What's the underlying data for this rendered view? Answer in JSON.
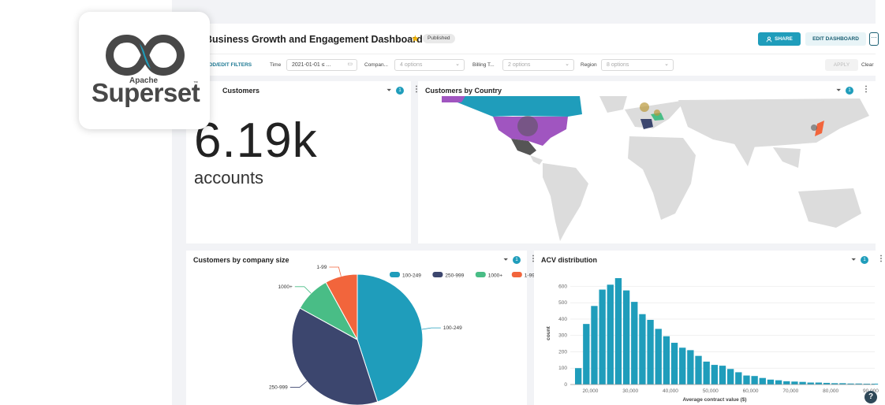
{
  "app": {
    "logo_apache": "Apache",
    "logo_superset": "Superset",
    "logo_tm": "™"
  },
  "header": {
    "title": "Business Growth and Engagement Dashboard",
    "badge": "Published",
    "share_label": "SHARE",
    "edit_label": "EDIT DASHBOARD",
    "more_label": "⋯"
  },
  "filters": {
    "add_label": "ADD/EDIT FILTERS",
    "time_label": "Time",
    "time_value": "2021-01-01 ≤ ...",
    "company_label": "Compan...",
    "company_value": "4 options",
    "billing_label": "Billing T...",
    "billing_value": "2 options",
    "region_label": "Region",
    "region_value": "8 options",
    "apply_label": "APPLY",
    "clear_label": "Clear"
  },
  "cards": {
    "customers": {
      "title": "Customers",
      "filter_count": "1",
      "value": "6.19k",
      "unit": "accounts"
    },
    "country": {
      "title": "Customers by Country",
      "filter_count": "1"
    },
    "size": {
      "title": "Customers by company size",
      "filter_count": "1"
    },
    "acv": {
      "title": "ACV distribution",
      "filter_count": "1"
    }
  },
  "colors": {
    "teal": "#1f9dbb",
    "navy": "#3c466e",
    "green": "#49bd86",
    "orange": "#f2653c",
    "purple": "#a055c0"
  },
  "chart_data": [
    {
      "type": "pie",
      "categories": [
        "100-249",
        "250-999",
        "1000+",
        "1-99"
      ],
      "values": [
        45,
        38,
        9,
        8
      ],
      "colors": [
        "#1f9dbb",
        "#3c466e",
        "#49bd86",
        "#f2653c"
      ],
      "legend": [
        "100-249",
        "250-999",
        "1000+",
        "1-99"
      ],
      "legend_placement": "top-right"
    },
    {
      "type": "bar",
      "categories": [
        "20,000",
        "30,000",
        "40,000",
        "50,000",
        "60,000",
        "70,000",
        "80,000",
        "90,000"
      ],
      "x": [
        16000,
        18000,
        20000,
        22000,
        24000,
        26000,
        28000,
        30000,
        32000,
        34000,
        36000,
        38000,
        40000,
        42000,
        44000,
        46000,
        48000,
        50000,
        52000,
        54000,
        56000,
        58000,
        60000,
        62000,
        64000,
        66000,
        68000,
        70000,
        72000,
        74000,
        76000,
        78000,
        80000,
        82000,
        84000,
        86000,
        88000,
        90000
      ],
      "values": [
        100,
        370,
        480,
        580,
        610,
        650,
        575,
        505,
        430,
        395,
        340,
        295,
        255,
        225,
        210,
        175,
        140,
        120,
        115,
        95,
        75,
        55,
        52,
        40,
        30,
        26,
        20,
        18,
        16,
        12,
        12,
        10,
        8,
        8,
        6,
        6,
        5,
        5
      ],
      "xlabel": "Average contract value ($)",
      "ylabel": "count",
      "xlim": [
        15000,
        91000
      ],
      "ylim": [
        0,
        650
      ],
      "yticks": [
        0,
        100,
        200,
        300,
        400,
        500,
        600
      ],
      "xticks": [
        20000,
        30000,
        40000,
        50000,
        60000,
        70000,
        80000,
        90000
      ],
      "grid": true,
      "color": "#1f9dbb"
    }
  ]
}
